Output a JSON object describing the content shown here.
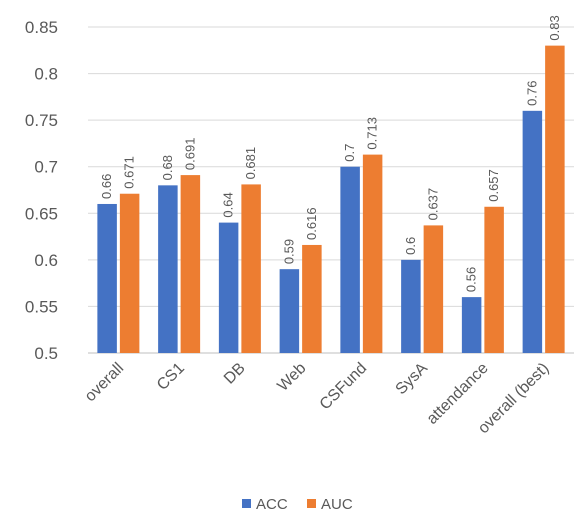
{
  "chart_data": {
    "type": "bar",
    "title": "",
    "xlabel": "",
    "ylabel": "",
    "categories": [
      "overall",
      "CS1",
      "DB",
      "Web",
      "CSFund",
      "SysA",
      "attendance",
      "overall (best)"
    ],
    "series": [
      {
        "name": "ACC",
        "color": "#4472c4",
        "values": [
          0.66,
          0.68,
          0.64,
          0.59,
          0.7,
          0.6,
          0.56,
          0.76
        ],
        "labels": [
          "0.66",
          "0.68",
          "0.64",
          "0.59",
          "0.7",
          "0.6",
          "0.56",
          "0.76"
        ]
      },
      {
        "name": "AUC",
        "color": "#ed7d31",
        "values": [
          0.671,
          0.691,
          0.681,
          0.616,
          0.713,
          0.637,
          0.657,
          0.83
        ],
        "labels": [
          "0.671",
          "0.691",
          "0.681",
          "0.616",
          "0.713",
          "0.637",
          "0.657",
          "0.83"
        ]
      }
    ],
    "ylim": [
      0.5,
      0.85
    ],
    "yticks": [
      "0.5",
      "0.55",
      "0.6",
      "0.65",
      "0.7",
      "0.75",
      "0.8",
      "0.85"
    ],
    "grid": true,
    "legend_position": "bottom"
  }
}
